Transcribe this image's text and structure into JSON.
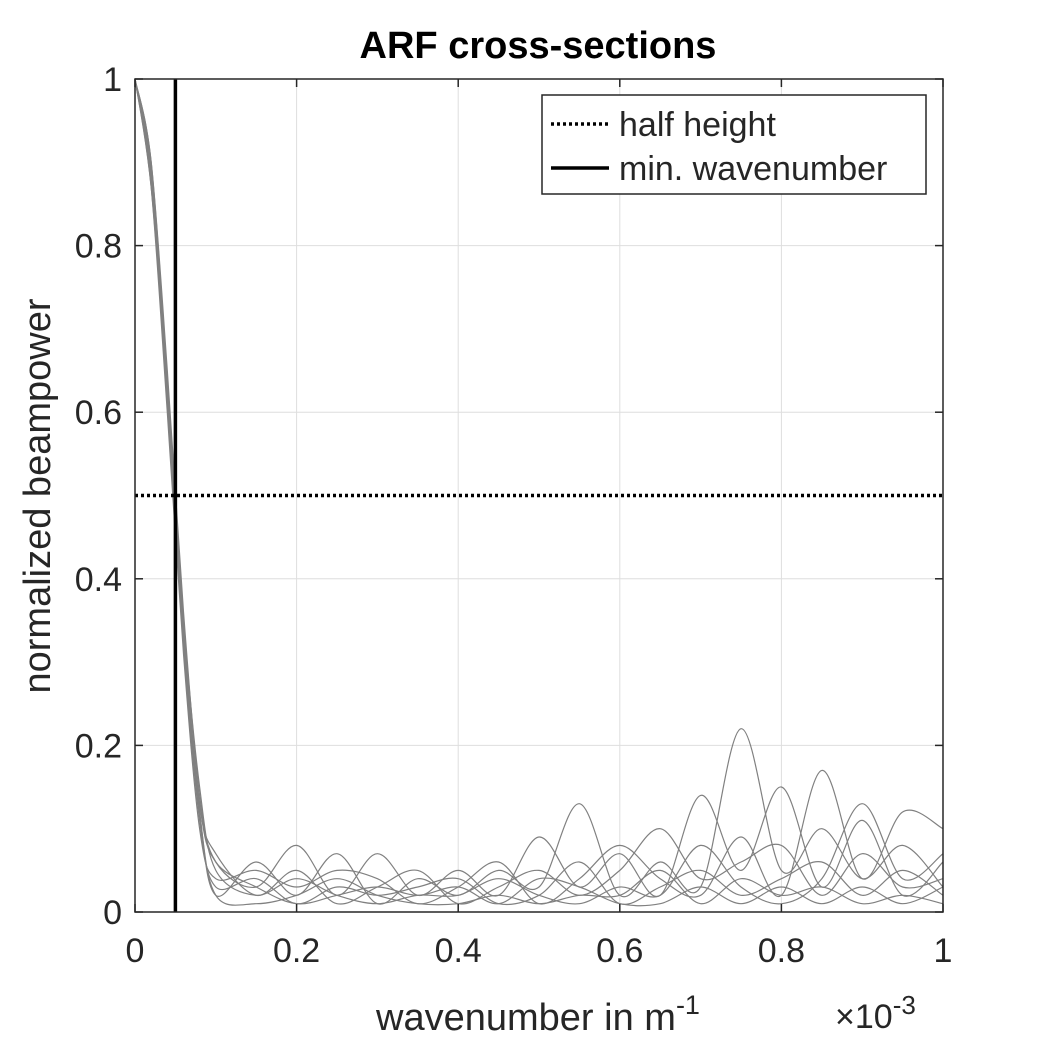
{
  "chart_data": {
    "type": "line",
    "title": "ARF cross-sections",
    "xlabel_main": "wavenumber in m",
    "xlabel_exp": "-1",
    "ylabel": "normalized beampower",
    "x_multiplier_sym": "×10",
    "x_multiplier_exp": "-3",
    "xlim": [
      0,
      1
    ],
    "ylim": [
      0,
      1
    ],
    "x_ticks": [
      0,
      0.2,
      0.4,
      0.6,
      0.8,
      1
    ],
    "x_tick_labels": [
      "0",
      "0.2",
      "0.4",
      "0.6",
      "0.8",
      "1"
    ],
    "y_ticks": [
      0,
      0.2,
      0.4,
      0.6,
      0.8,
      1
    ],
    "y_tick_labels": [
      "0",
      "0.2",
      "0.4",
      "0.6",
      "0.8",
      "1"
    ],
    "grid": true,
    "legend_position": "top-right",
    "legend": [
      {
        "label": "half height",
        "style": "dotted",
        "color": "#000000"
      },
      {
        "label": "min. wavenumber",
        "style": "solid",
        "color": "#000000"
      }
    ],
    "reference_lines": {
      "half_height_y": 0.5,
      "min_wavenumber_x": 0.05
    },
    "curve_color": "#808080",
    "series": [
      {
        "x": [
          0,
          0.02,
          0.04,
          0.06,
          0.08,
          0.1,
          0.15,
          0.2,
          0.25,
          0.3,
          0.35,
          0.4,
          0.45,
          0.5,
          0.55,
          0.6,
          0.65,
          0.7,
          0.75,
          0.8,
          0.85,
          0.9,
          0.95,
          1.0
        ],
        "y": [
          1,
          0.88,
          0.62,
          0.33,
          0.12,
          0.02,
          0.06,
          0.02,
          0.07,
          0.01,
          0.04,
          0.02,
          0.05,
          0.03,
          0.13,
          0.02,
          0.06,
          0.03,
          0.22,
          0.05,
          0.1,
          0.04,
          0.08,
          0.03
        ]
      },
      {
        "x": [
          0,
          0.02,
          0.04,
          0.06,
          0.08,
          0.1,
          0.15,
          0.2,
          0.25,
          0.3,
          0.35,
          0.4,
          0.45,
          0.5,
          0.55,
          0.6,
          0.65,
          0.7,
          0.75,
          0.8,
          0.85,
          0.9,
          0.95,
          1.0
        ],
        "y": [
          1,
          0.9,
          0.65,
          0.36,
          0.14,
          0.06,
          0.03,
          0.08,
          0.02,
          0.07,
          0.02,
          0.05,
          0.02,
          0.09,
          0.03,
          0.07,
          0.02,
          0.14,
          0.05,
          0.15,
          0.03,
          0.11,
          0.02,
          0.06
        ]
      },
      {
        "x": [
          0,
          0.02,
          0.04,
          0.06,
          0.08,
          0.1,
          0.15,
          0.2,
          0.25,
          0.3,
          0.35,
          0.4,
          0.45,
          0.5,
          0.55,
          0.6,
          0.65,
          0.7,
          0.75,
          0.8,
          0.85,
          0.9,
          0.95,
          1.0
        ],
        "y": [
          1,
          0.87,
          0.6,
          0.31,
          0.1,
          0.04,
          0.05,
          0.03,
          0.05,
          0.04,
          0.01,
          0.03,
          0.06,
          0.01,
          0.04,
          0.08,
          0.04,
          0.02,
          0.09,
          0.02,
          0.17,
          0.04,
          0.12,
          0.1
        ]
      },
      {
        "x": [
          0,
          0.02,
          0.04,
          0.06,
          0.08,
          0.1,
          0.15,
          0.2,
          0.25,
          0.3,
          0.35,
          0.4,
          0.45,
          0.5,
          0.55,
          0.6,
          0.65,
          0.7,
          0.75,
          0.8,
          0.85,
          0.9,
          0.95,
          1.0
        ],
        "y": [
          1,
          0.89,
          0.63,
          0.34,
          0.13,
          0.07,
          0.02,
          0.05,
          0.01,
          0.03,
          0.05,
          0.01,
          0.03,
          0.05,
          0.02,
          0.05,
          0.1,
          0.04,
          0.06,
          0.08,
          0.02,
          0.07,
          0.03,
          0.04
        ]
      },
      {
        "x": [
          0,
          0.02,
          0.04,
          0.06,
          0.08,
          0.1,
          0.15,
          0.2,
          0.25,
          0.3,
          0.35,
          0.4,
          0.45,
          0.5,
          0.55,
          0.6,
          0.65,
          0.7,
          0.75,
          0.8,
          0.85,
          0.9,
          0.95,
          1.0
        ],
        "y": [
          1,
          0.88,
          0.61,
          0.32,
          0.11,
          0.03,
          0.04,
          0.01,
          0.03,
          0.02,
          0.03,
          0.04,
          0.01,
          0.02,
          0.06,
          0.01,
          0.03,
          0.05,
          0.02,
          0.04,
          0.06,
          0.02,
          0.05,
          0.02
        ]
      },
      {
        "x": [
          0,
          0.02,
          0.04,
          0.06,
          0.08,
          0.1,
          0.15,
          0.2,
          0.25,
          0.3,
          0.35,
          0.4,
          0.45,
          0.5,
          0.55,
          0.6,
          0.65,
          0.7,
          0.75,
          0.8,
          0.85,
          0.9,
          0.95,
          1.0
        ],
        "y": [
          1,
          0.9,
          0.64,
          0.35,
          0.15,
          0.05,
          0.02,
          0.04,
          0.02,
          0.01,
          0.02,
          0.02,
          0.04,
          0.02,
          0.01,
          0.03,
          0.02,
          0.08,
          0.03,
          0.01,
          0.04,
          0.13,
          0.04,
          0.07
        ]
      },
      {
        "x": [
          0,
          0.02,
          0.04,
          0.06,
          0.08,
          0.1,
          0.15,
          0.2,
          0.25,
          0.3,
          0.35,
          0.4,
          0.45,
          0.5,
          0.55,
          0.6,
          0.65,
          0.7,
          0.75,
          0.8,
          0.85,
          0.9,
          0.95,
          1.0
        ],
        "y": [
          1,
          0.87,
          0.62,
          0.33,
          0.12,
          0.02,
          0.01,
          0.02,
          0.04,
          0.02,
          0.01,
          0.01,
          0.02,
          0.01,
          0.02,
          0.02,
          0.05,
          0.01,
          0.04,
          0.02,
          0.03,
          0.01,
          0.02,
          0.01
        ]
      },
      {
        "x": [
          0,
          0.02,
          0.04,
          0.06,
          0.08,
          0.1,
          0.15,
          0.2,
          0.25,
          0.3,
          0.35,
          0.4,
          0.45,
          0.5,
          0.55,
          0.6,
          0.65,
          0.7,
          0.75,
          0.8,
          0.85,
          0.9,
          0.95,
          1.0
        ],
        "y": [
          1,
          0.89,
          0.63,
          0.34,
          0.13,
          0.06,
          0.03,
          0.01,
          0.02,
          0.03,
          0.02,
          0.03,
          0.01,
          0.04,
          0.03,
          0.01,
          0.01,
          0.03,
          0.01,
          0.03,
          0.01,
          0.03,
          0.01,
          0.03
        ]
      }
    ]
  }
}
